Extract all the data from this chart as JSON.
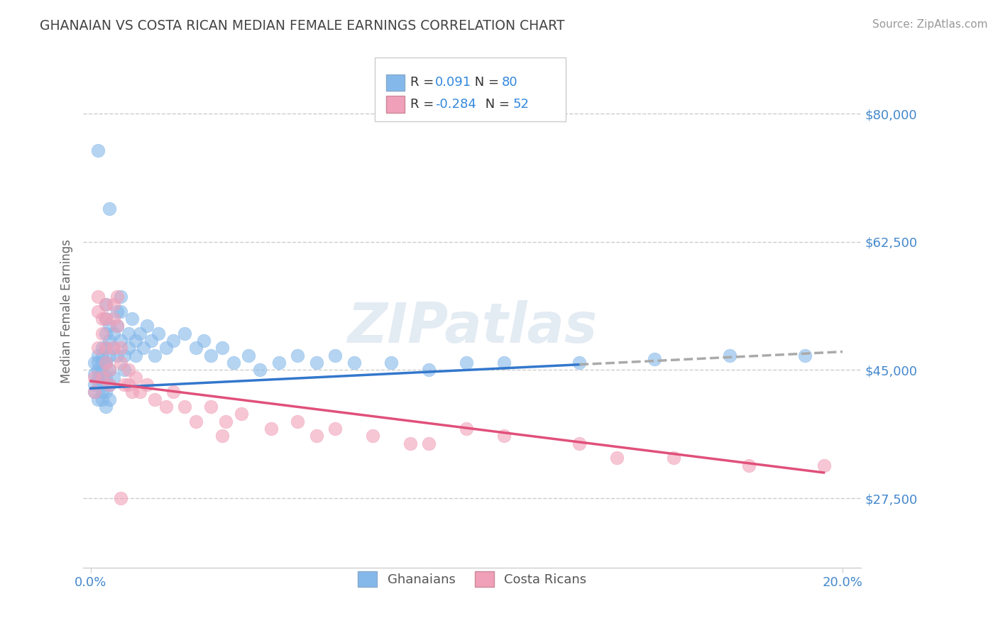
{
  "title": "GHANAIAN VS COSTA RICAN MEDIAN FEMALE EARNINGS CORRELATION CHART",
  "source": "Source: ZipAtlas.com",
  "ylabel": "Median Female Earnings",
  "xlim": [
    -0.002,
    0.205
  ],
  "ylim": [
    18000,
    88000
  ],
  "ytick_vals": [
    27500,
    45000,
    62500,
    80000
  ],
  "ytick_labels": [
    "$27,500",
    "$45,000",
    "$62,500",
    "$80,000"
  ],
  "watermark": "ZIPatlas",
  "blue_color": "#85b8ea",
  "pink_color": "#f0a0b8",
  "blue_line_color": "#3377cc",
  "pink_line_color": "#e0507a",
  "dash_color": "#aaaaaa",
  "title_color": "#444444",
  "axis_label_color": "#666666",
  "tick_color": "#4488cc",
  "grid_color": "#cccccc",
  "background_color": "#ffffff",
  "trend_blue_x0": 0.0,
  "trend_blue_y0": 42500,
  "trend_blue_x1": 0.2,
  "trend_blue_y1": 47500,
  "trend_blue_solid_end": 0.13,
  "trend_pink_x0": 0.0,
  "trend_pink_y0": 43500,
  "trend_pink_x1": 0.195,
  "trend_pink_y1": 31000,
  "ghanaians_x": [
    0.001,
    0.001,
    0.001,
    0.001,
    0.002,
    0.002,
    0.002,
    0.002,
    0.002,
    0.002,
    0.003,
    0.003,
    0.003,
    0.003,
    0.003,
    0.003,
    0.003,
    0.003,
    0.004,
    0.004,
    0.004,
    0.004,
    0.004,
    0.004,
    0.004,
    0.004,
    0.004,
    0.005,
    0.005,
    0.005,
    0.005,
    0.005,
    0.005,
    0.006,
    0.006,
    0.006,
    0.007,
    0.007,
    0.007,
    0.008,
    0.008,
    0.008,
    0.009,
    0.009,
    0.01,
    0.01,
    0.011,
    0.012,
    0.012,
    0.013,
    0.014,
    0.015,
    0.016,
    0.017,
    0.018,
    0.02,
    0.022,
    0.025,
    0.028,
    0.03,
    0.032,
    0.035,
    0.038,
    0.042,
    0.045,
    0.05,
    0.055,
    0.06,
    0.065,
    0.07,
    0.08,
    0.09,
    0.1,
    0.11,
    0.13,
    0.15,
    0.17,
    0.19,
    0.002,
    0.005
  ],
  "ghanaians_y": [
    43000,
    44500,
    46000,
    42000,
    45000,
    47000,
    43500,
    41000,
    44000,
    46000,
    48000,
    46000,
    44000,
    42000,
    45000,
    43000,
    47000,
    41000,
    50000,
    48000,
    46000,
    44000,
    52000,
    54000,
    42000,
    40000,
    46000,
    47000,
    45000,
    43000,
    49000,
    51000,
    41000,
    50000,
    48000,
    44000,
    53000,
    51000,
    47000,
    55000,
    53000,
    49000,
    47000,
    45000,
    50000,
    48000,
    52000,
    49000,
    47000,
    50000,
    48000,
    51000,
    49000,
    47000,
    50000,
    48000,
    49000,
    50000,
    48000,
    49000,
    47000,
    48000,
    46000,
    47000,
    45000,
    46000,
    47000,
    46000,
    47000,
    46000,
    46000,
    45000,
    46000,
    46000,
    46000,
    46500,
    47000,
    47000,
    75000,
    67000
  ],
  "costaricans_x": [
    0.001,
    0.001,
    0.002,
    0.002,
    0.002,
    0.003,
    0.003,
    0.003,
    0.004,
    0.004,
    0.004,
    0.004,
    0.005,
    0.005,
    0.006,
    0.006,
    0.006,
    0.007,
    0.007,
    0.008,
    0.008,
    0.009,
    0.01,
    0.01,
    0.011,
    0.012,
    0.013,
    0.015,
    0.017,
    0.02,
    0.022,
    0.025,
    0.028,
    0.032,
    0.036,
    0.04,
    0.048,
    0.055,
    0.065,
    0.075,
    0.09,
    0.1,
    0.11,
    0.13,
    0.155,
    0.175,
    0.008,
    0.035,
    0.06,
    0.085,
    0.14,
    0.195
  ],
  "costaricans_y": [
    44000,
    42000,
    53000,
    55000,
    48000,
    52000,
    50000,
    44000,
    54000,
    52000,
    48000,
    46000,
    43000,
    45000,
    54000,
    52000,
    48000,
    55000,
    51000,
    48000,
    46000,
    43000,
    45000,
    43000,
    42000,
    44000,
    42000,
    43000,
    41000,
    40000,
    42000,
    40000,
    38000,
    40000,
    38000,
    39000,
    37000,
    38000,
    37000,
    36000,
    35000,
    37000,
    36000,
    35000,
    33000,
    32000,
    27500,
    36000,
    36000,
    35000,
    33000,
    32000
  ]
}
